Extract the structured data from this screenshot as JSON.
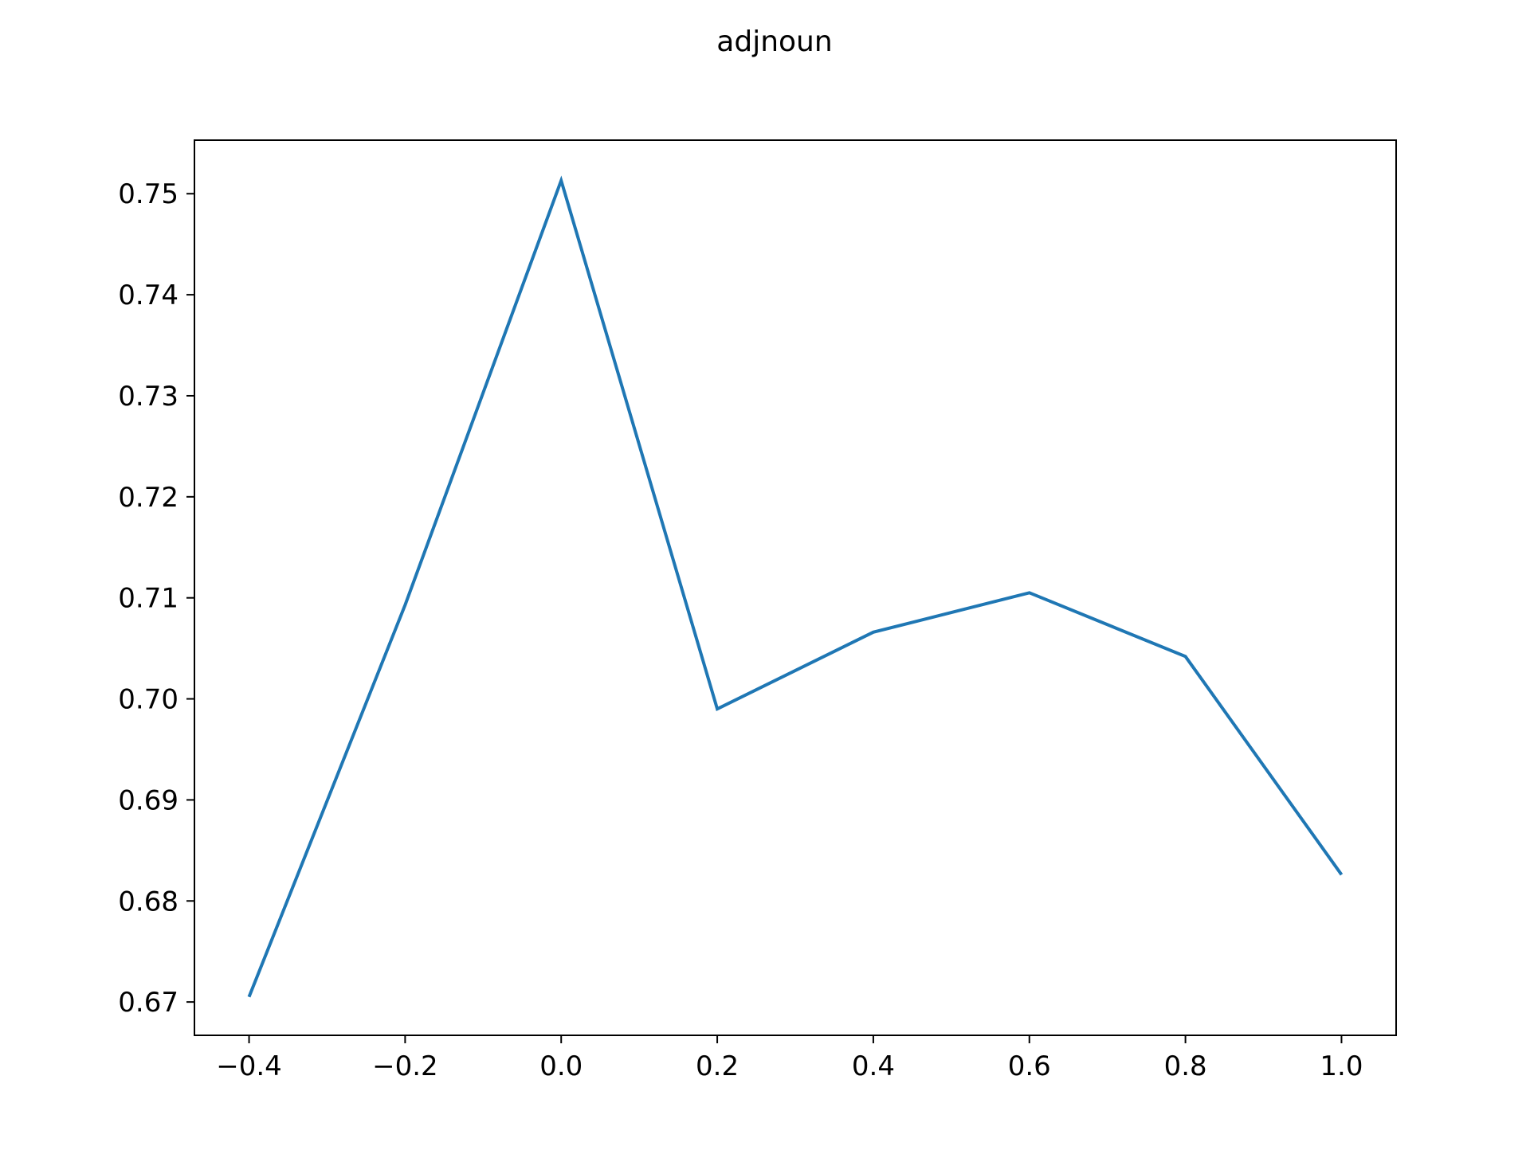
{
  "chart_data": {
    "type": "line",
    "title": "adjnoun",
    "xlabel": "",
    "ylabel": "",
    "x": [
      -0.4,
      -0.2,
      0.0,
      0.2,
      0.4,
      0.6,
      0.8,
      1.0
    ],
    "series": [
      {
        "values": [
          0.6705,
          0.7093,
          0.7513,
          0.699,
          0.7066,
          0.7105,
          0.7042,
          0.6826
        ],
        "color": "#1f77b4"
      }
    ],
    "xticks": [
      -0.4,
      -0.2,
      0.0,
      0.2,
      0.4,
      0.6,
      0.8,
      1.0
    ],
    "xtick_labels": [
      "−0.4",
      "−0.2",
      "0.0",
      "0.2",
      "0.4",
      "0.6",
      "0.8",
      "1.0"
    ],
    "yticks": [
      0.67,
      0.68,
      0.69,
      0.7,
      0.71,
      0.72,
      0.73,
      0.74,
      0.75
    ],
    "ytick_labels": [
      "0.67",
      "0.68",
      "0.69",
      "0.70",
      "0.71",
      "0.72",
      "0.73",
      "0.74",
      "0.75"
    ],
    "xlim": [
      -0.47,
      1.07
    ],
    "ylim": [
      0.6667,
      0.7553
    ],
    "grid": false,
    "legend": "none"
  }
}
